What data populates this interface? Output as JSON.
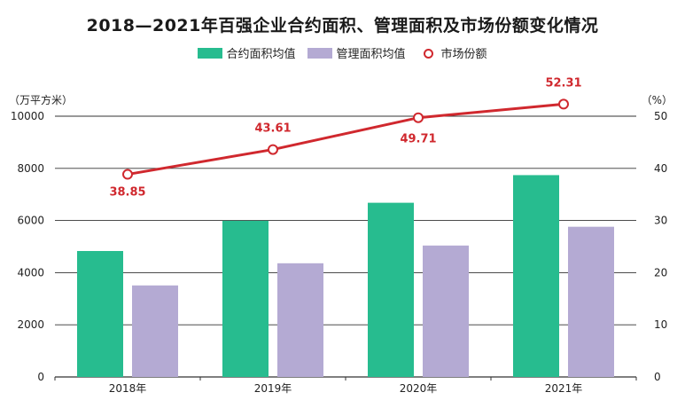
{
  "title": "2018—2021年百强企业合约面积、管理面积及市场份额变化情况",
  "legend": {
    "contract": "合约面积均值",
    "managed": "管理面积均值",
    "share": "市场份额"
  },
  "left_unit": "（万平方米）",
  "right_unit": "（%）",
  "colors": {
    "contract": "#27bc8f",
    "managed": "#b4aad3",
    "share": "#d0282e",
    "grid": "#333333"
  },
  "chart_data": {
    "type": "bar",
    "categories": [
      "2018年",
      "2019年",
      "2020年",
      "2021年"
    ],
    "series": [
      {
        "name": "合约面积均值",
        "type": "bar",
        "axis": "left",
        "values": [
          4830,
          5990,
          6680,
          7740
        ]
      },
      {
        "name": "管理面积均值",
        "type": "bar",
        "axis": "left",
        "values": [
          3510,
          4360,
          5040,
          5760
        ]
      },
      {
        "name": "市场份额",
        "type": "line",
        "axis": "right",
        "values": [
          38.85,
          43.61,
          49.71,
          52.31
        ],
        "labels": [
          "38.85",
          "43.61",
          "49.71",
          "52.31"
        ]
      }
    ],
    "y_left": {
      "label": "万平方米",
      "min": 0,
      "max": 10000,
      "ticks": [
        0,
        2000,
        4000,
        6000,
        8000,
        10000
      ]
    },
    "y_right": {
      "label": "%",
      "min": 0,
      "max": 50,
      "ticks": [
        0,
        10,
        20,
        30,
        40,
        50
      ]
    },
    "grid": true,
    "legend_position": "top-center"
  }
}
